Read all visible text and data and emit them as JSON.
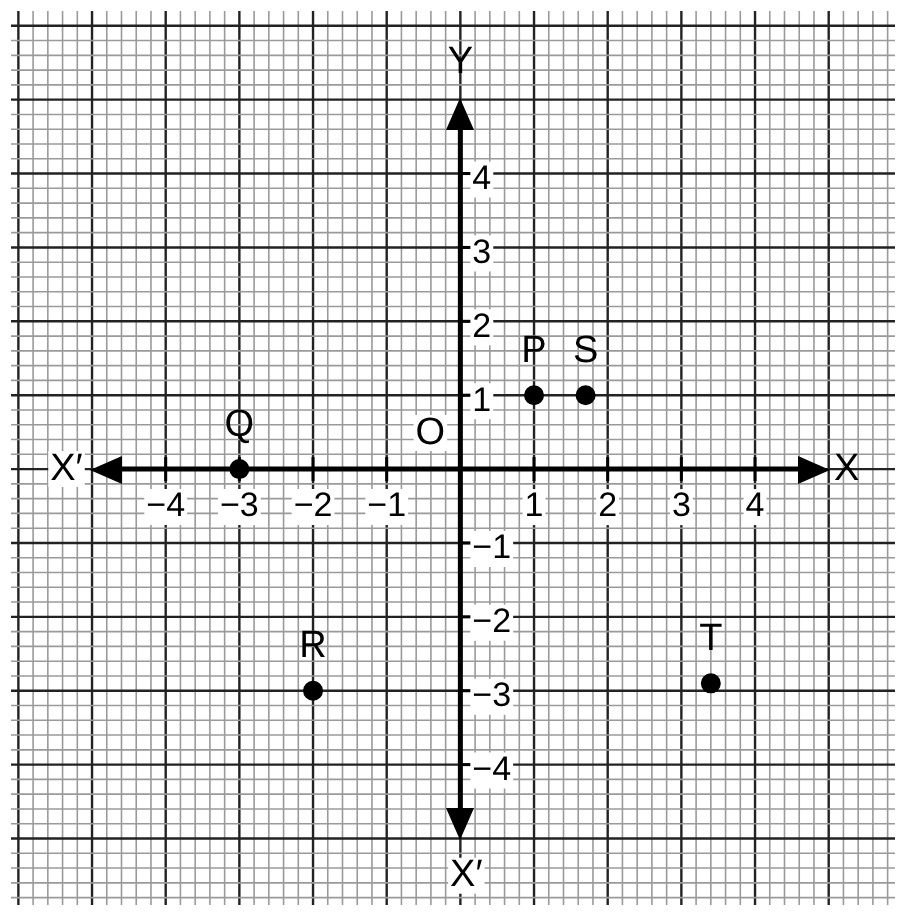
{
  "chart_data": {
    "type": "scatter",
    "xlabel": "X",
    "ylabel": "Y",
    "x": [
      1,
      1.7,
      -3,
      -2,
      3.4
    ],
    "series": [
      {
        "color": "#000000",
        "values": [
          1,
          1,
          0,
          -3,
          -2.9
        ]
      }
    ],
    "xlim": [
      -6.1,
      5.9
    ],
    "ylim": [
      -5.9,
      6.2
    ],
    "xticks": [
      -4,
      -3,
      -2,
      -1,
      1,
      2,
      3,
      4
    ],
    "yticks": [
      -4,
      -3,
      -2,
      -1,
      1,
      2,
      3,
      4
    ],
    "grid": true,
    "legend": false,
    "marker": "circle",
    "annotations": [
      {
        "text": "P",
        "x": 1,
        "y": 1
      },
      {
        "text": "S",
        "x": 1.7,
        "y": 1
      },
      {
        "text": "Q",
        "x": -3,
        "y": 0
      },
      {
        "text": "R",
        "x": -2,
        "y": -3
      },
      {
        "text": "T",
        "x": 3.4,
        "y": -2.9
      },
      "O",
      "X′",
      "X′"
    ]
  }
}
